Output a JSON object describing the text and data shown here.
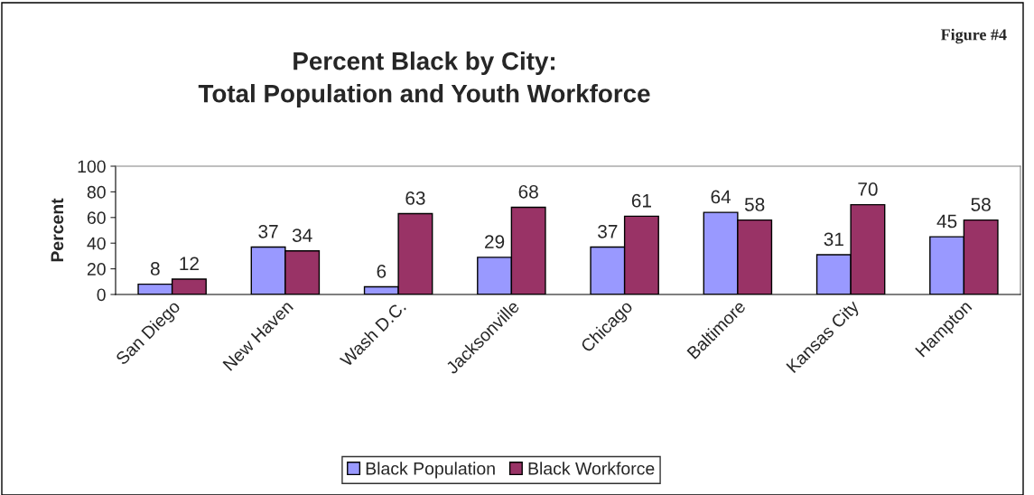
{
  "chart_data": {
    "type": "bar",
    "title": "Percent Black by City:\nTotal Population and Youth Workforce",
    "ylabel": "Percent",
    "categories": [
      "San Diego",
      "New Haven",
      "Wash D.C.",
      "Jacksonville",
      "Chicago",
      "Baltimore",
      "Kansas City",
      "Hampton"
    ],
    "series": [
      {
        "name": "Black Population",
        "color": "#9999ff",
        "values": [
          8,
          37,
          6,
          29,
          37,
          64,
          31,
          45
        ]
      },
      {
        "name": "Black Workforce",
        "color": "#993366",
        "values": [
          12,
          34,
          63,
          68,
          61,
          58,
          70,
          58
        ]
      }
    ],
    "ylim": [
      0,
      100
    ],
    "yticks": [
      0,
      20,
      40,
      60,
      80,
      100
    ],
    "grid": false,
    "legend": "bottom",
    "data_labels": true,
    "annotations": [
      "Figure #4"
    ]
  }
}
